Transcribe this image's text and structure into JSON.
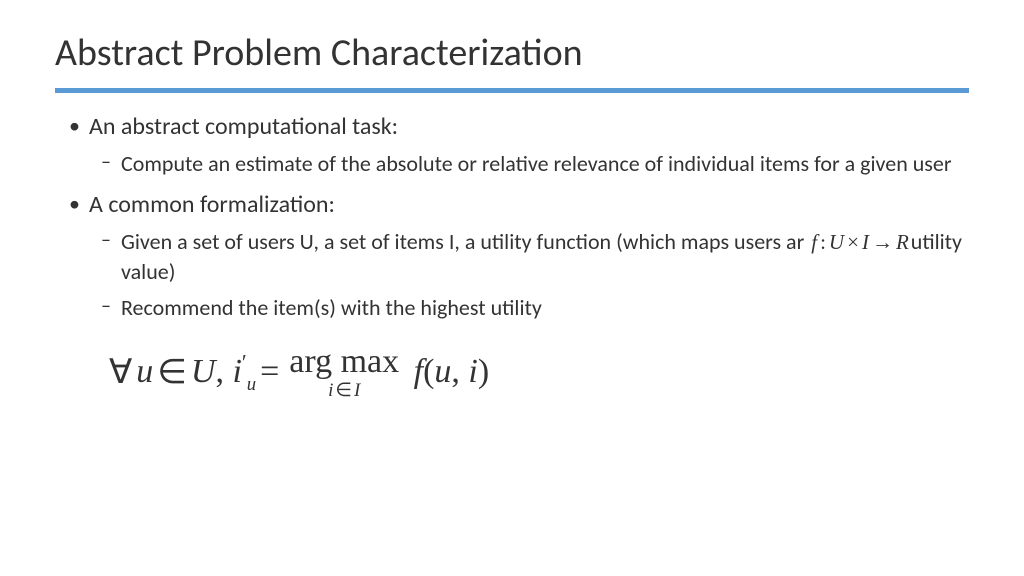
{
  "slide": {
    "title": "Abstract Problem Characterization",
    "divider_color": "#5b9bd5",
    "background_color": "#ffffff",
    "text_color": "#333333",
    "title_fontsize": 38,
    "body_fontsize_l1": 24,
    "body_fontsize_l2": 22,
    "bullets": [
      {
        "text": "An abstract computational task:",
        "children": [
          {
            "text": "Compute an estimate of the absolute or relative relevance of individual items for a given user"
          }
        ]
      },
      {
        "text": "A common formalization:",
        "children": [
          {
            "text_prefix": "Given a set of users U, a set of items I, a utility function (which maps users ar ",
            "math": "f : U × I → R",
            "text_suffix": "utility value)"
          },
          {
            "text": "Recommend the item(s) with the highest utility"
          }
        ]
      }
    ],
    "formula": {
      "latex": "\\forall u \\in U, i'_u = \\arg\\max_{i \\in I} f(u,i)",
      "forall": "∀",
      "u": "u",
      "in": "∈",
      "U": "U",
      "comma": ",",
      "i": "i",
      "prime": "′",
      "sub_u": "u",
      "eq": "=",
      "argmax": "arg max",
      "argmax_sub_i": "i",
      "argmax_sub_in": "∈",
      "argmax_sub_I": "I",
      "f": "f",
      "lparen": "(",
      "arg1": "u",
      "argsep": ",",
      "arg2": "i",
      "rparen": ")",
      "fontsize": 34
    }
  }
}
